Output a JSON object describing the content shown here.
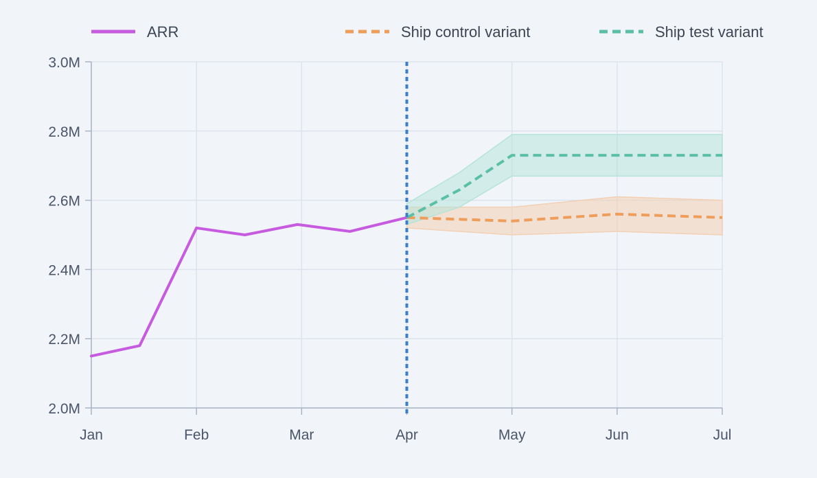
{
  "chart_data": {
    "type": "line",
    "x_axis": {
      "ticks": [
        "Jan",
        "Feb",
        "Mar",
        "Apr",
        "May",
        "Jun",
        "Jul"
      ],
      "min": 0,
      "max": 6
    },
    "y_axis": {
      "ticks": [
        "2.0M",
        "2.2M",
        "2.4M",
        "2.6M",
        "2.8M",
        "3.0M"
      ],
      "tick_values": [
        2000000,
        2200000,
        2400000,
        2600000,
        2800000,
        3000000
      ],
      "min": 2000000,
      "max": 3000000
    },
    "grid": true,
    "legend_position": "top",
    "series": [
      {
        "name": "ARR",
        "style": "solid",
        "color": "#c65be0",
        "x": [
          0,
          0.46,
          1,
          1.46,
          1.96,
          2.46,
          3
        ],
        "y": [
          2150000,
          2180000,
          2520000,
          2500000,
          2530000,
          2510000,
          2550000
        ]
      },
      {
        "name": "Ship control variant",
        "style": "dashed",
        "color": "#ef9d5b",
        "band_color": "#f3cfb3",
        "x": [
          3,
          4,
          5,
          6
        ],
        "y": [
          2550000,
          2540000,
          2560000,
          2550000
        ],
        "upper": [
          2580000,
          2580000,
          2610000,
          2600000
        ],
        "lower": [
          2520000,
          2500000,
          2510000,
          2500000
        ]
      },
      {
        "name": "Ship test variant",
        "style": "dashed",
        "color": "#5bbfa6",
        "band_color": "#b6e3da",
        "x": [
          3,
          3.5,
          4,
          5,
          6
        ],
        "y": [
          2550000,
          2630000,
          2730000,
          2730000,
          2730000
        ],
        "upper": [
          2590000,
          2680000,
          2790000,
          2790000,
          2790000
        ],
        "lower": [
          2530000,
          2580000,
          2670000,
          2670000,
          2670000
        ]
      }
    ],
    "annotations": [
      {
        "type": "vertical-line",
        "x": 3,
        "style": "dotted",
        "color": "#3b7fcb"
      }
    ]
  }
}
